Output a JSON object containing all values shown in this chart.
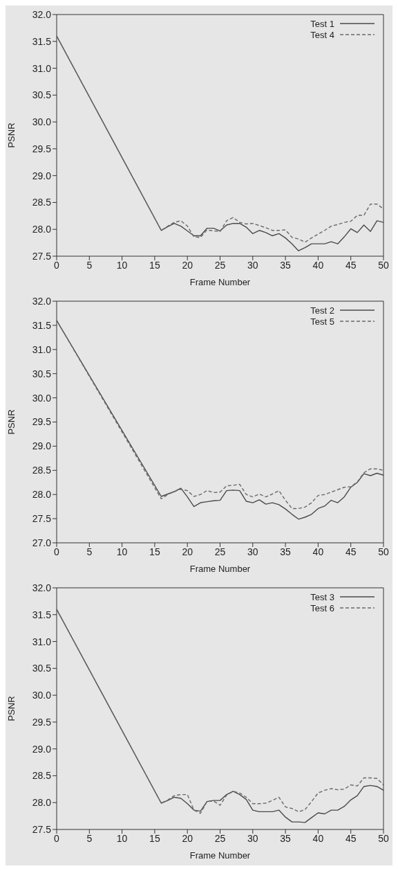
{
  "chart_data": [
    {
      "type": "line",
      "xlabel": "Frame Number",
      "ylabel": "PSNR",
      "x": [
        0,
        16,
        17,
        18,
        19,
        20,
        21,
        22,
        23,
        24,
        25,
        26,
        27,
        28,
        29,
        30,
        31,
        32,
        33,
        34,
        35,
        36,
        37,
        38,
        39,
        40,
        41,
        42,
        43,
        44,
        45,
        46,
        47,
        48,
        49,
        50
      ],
      "xlim": [
        0,
        50
      ],
      "xticks": [
        0,
        5,
        10,
        15,
        20,
        25,
        30,
        35,
        40,
        45,
        50
      ],
      "ylim": [
        27.5,
        32
      ],
      "yticks": [
        {
          "value": 27.5,
          "label": "27.5"
        },
        {
          "value": 28,
          "label": "28.0"
        },
        {
          "value": 28.5,
          "label": "28.5"
        },
        {
          "value": 29,
          "label": "29.0"
        },
        {
          "value": 29.5,
          "label": "29.5"
        },
        {
          "value": 30,
          "label": "30.0"
        },
        {
          "value": 30.5,
          "label": "30.5"
        },
        {
          "value": 31,
          "label": "31.0"
        },
        {
          "value": 31.5,
          "label": "31.5"
        },
        {
          "value": 32,
          "label": "32.0"
        }
      ],
      "legend": "top right",
      "marker": "none",
      "series": [
        {
          "name": "Test 1",
          "color": "#4a4a4a",
          "line_style": "solid",
          "values": [
            31.6,
            27.98,
            28.05,
            28.11,
            28.06,
            27.97,
            27.88,
            27.88,
            28.02,
            28.02,
            27.97,
            28.08,
            28.11,
            28.11,
            28.04,
            27.92,
            27.98,
            27.94,
            27.88,
            27.92,
            27.84,
            27.73,
            27.6,
            27.66,
            27.73,
            27.73,
            27.73,
            27.77,
            27.73,
            27.86,
            28.01,
            27.94,
            28.08,
            27.96,
            28.16,
            28.13
          ]
        },
        {
          "name": "Test 4",
          "color": "#6a6a6a",
          "line_style": "dashed",
          "values": [
            31.6,
            27.98,
            28.06,
            28.13,
            28.16,
            28.06,
            27.86,
            27.85,
            27.99,
            27.97,
            27.96,
            28.16,
            28.22,
            28.13,
            28.1,
            28.11,
            28.07,
            28.03,
            27.98,
            27.98,
            27.99,
            27.85,
            27.82,
            27.76,
            27.84,
            27.91,
            27.98,
            28.06,
            28.09,
            28.13,
            28.15,
            28.26,
            28.26,
            28.47,
            28.47,
            28.38
          ]
        }
      ]
    },
    {
      "type": "line",
      "xlabel": "Frame Number",
      "ylabel": "PSNR",
      "x": [
        0,
        16,
        17,
        18,
        19,
        20,
        21,
        22,
        23,
        24,
        25,
        26,
        27,
        28,
        29,
        30,
        31,
        32,
        33,
        34,
        35,
        36,
        37,
        38,
        39,
        40,
        41,
        42,
        43,
        44,
        45,
        46,
        47,
        48,
        49,
        50
      ],
      "xlim": [
        0,
        50
      ],
      "xticks": [
        0,
        5,
        10,
        15,
        20,
        25,
        30,
        35,
        40,
        45,
        50
      ],
      "ylim": [
        27,
        32
      ],
      "yticks": [
        {
          "value": 27,
          "label": "27.0"
        },
        {
          "value": 27.5,
          "label": "27.5"
        },
        {
          "value": 28,
          "label": "28.0"
        },
        {
          "value": 28.5,
          "label": "28.5"
        },
        {
          "value": 29,
          "label": "29.0"
        },
        {
          "value": 29.5,
          "label": "29.5"
        },
        {
          "value": 30,
          "label": "30.0"
        },
        {
          "value": 30.5,
          "label": "30.5"
        },
        {
          "value": 31,
          "label": "31.0"
        },
        {
          "value": 31.5,
          "label": "31.5"
        },
        {
          "value": 32,
          "label": "32.0"
        }
      ],
      "legend": "top right",
      "marker": "none",
      "series": [
        {
          "name": "Test 2",
          "color": "#4a4a4a",
          "line_style": "solid",
          "values": [
            31.6,
            27.96,
            28.01,
            28.06,
            28.13,
            27.95,
            27.75,
            27.83,
            27.85,
            27.87,
            27.88,
            28.08,
            28.09,
            28.08,
            27.86,
            27.83,
            27.89,
            27.8,
            27.83,
            27.79,
            27.7,
            27.59,
            27.49,
            27.53,
            27.59,
            27.71,
            27.76,
            27.88,
            27.83,
            27.95,
            28.15,
            28.25,
            28.43,
            28.39,
            28.44,
            28.4
          ]
        },
        {
          "name": "Test 5",
          "color": "#6a6a6a",
          "line_style": "dashed",
          "values": [
            31.6,
            27.91,
            28.0,
            28.06,
            28.11,
            28.08,
            27.96,
            28.0,
            28.08,
            28.04,
            28.05,
            28.18,
            28.19,
            28.21,
            28.0,
            27.95,
            28.01,
            27.95,
            28.01,
            28.08,
            27.88,
            27.71,
            27.71,
            27.74,
            27.83,
            27.98,
            28.0,
            28.05,
            28.1,
            28.15,
            28.16,
            28.26,
            28.45,
            28.53,
            28.53,
            28.5
          ]
        }
      ]
    },
    {
      "type": "line",
      "xlabel": "Frame Number",
      "ylabel": "PSNR",
      "x": [
        0,
        16,
        17,
        18,
        19,
        20,
        21,
        22,
        23,
        24,
        25,
        26,
        27,
        28,
        29,
        30,
        31,
        32,
        33,
        34,
        35,
        36,
        37,
        38,
        39,
        40,
        41,
        42,
        43,
        44,
        45,
        46,
        47,
        48,
        49,
        50
      ],
      "xlim": [
        0,
        50
      ],
      "xticks": [
        0,
        5,
        10,
        15,
        20,
        25,
        30,
        35,
        40,
        45,
        50
      ],
      "ylim": [
        27.5,
        32
      ],
      "yticks": [
        {
          "value": 27.5,
          "label": "27.5"
        },
        {
          "value": 28,
          "label": "28.0"
        },
        {
          "value": 28.5,
          "label": "28.5"
        },
        {
          "value": 29,
          "label": "29.0"
        },
        {
          "value": 29.5,
          "label": "29.5"
        },
        {
          "value": 30,
          "label": "30.0"
        },
        {
          "value": 30.5,
          "label": "30.5"
        },
        {
          "value": 31,
          "label": "31.0"
        },
        {
          "value": 31.5,
          "label": "31.5"
        },
        {
          "value": 32,
          "label": "32.0"
        }
      ],
      "legend": "top right",
      "marker": "none",
      "series": [
        {
          "name": "Test 3",
          "color": "#4a4a4a",
          "line_style": "solid",
          "values": [
            31.6,
            27.99,
            28.04,
            28.1,
            28.08,
            27.98,
            27.86,
            27.84,
            28.02,
            28.04,
            28.04,
            28.15,
            28.21,
            28.15,
            28.06,
            27.86,
            27.83,
            27.83,
            27.83,
            27.86,
            27.73,
            27.64,
            27.64,
            27.63,
            27.72,
            27.81,
            27.79,
            27.86,
            27.86,
            27.93,
            28.05,
            28.13,
            28.3,
            28.32,
            28.3,
            28.23
          ]
        },
        {
          "name": "Test 6",
          "color": "#6a6a6a",
          "line_style": "dashed",
          "values": [
            31.6,
            27.99,
            28.05,
            28.13,
            28.15,
            28.15,
            27.86,
            27.8,
            28.02,
            28.03,
            27.95,
            28.14,
            28.21,
            28.18,
            28.1,
            27.98,
            27.98,
            27.99,
            28.04,
            28.1,
            27.92,
            27.89,
            27.83,
            27.87,
            28.02,
            28.18,
            28.23,
            28.26,
            28.24,
            28.25,
            28.33,
            28.31,
            28.46,
            28.46,
            28.45,
            28.33
          ]
        }
      ]
    }
  ]
}
